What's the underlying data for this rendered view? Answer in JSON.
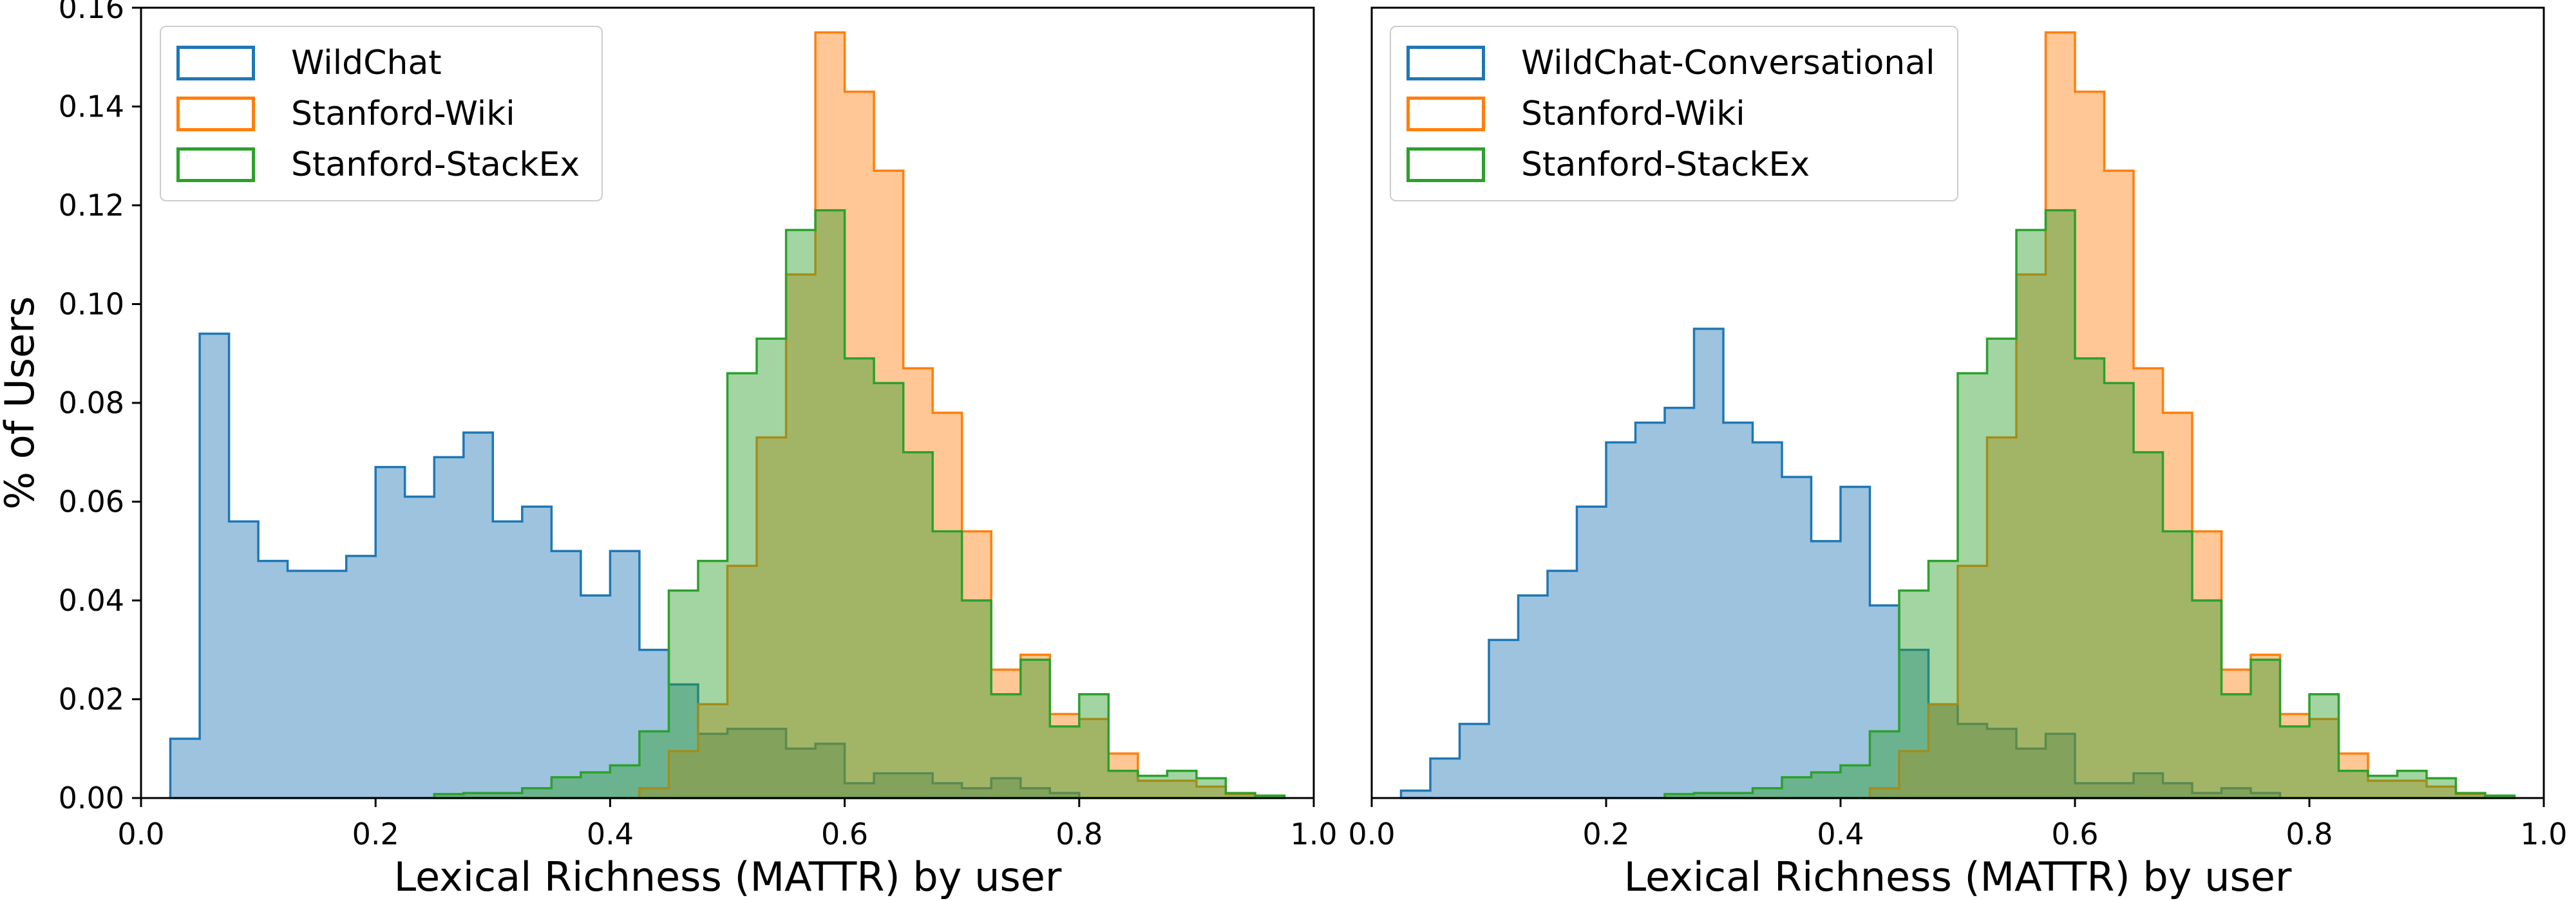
{
  "figure": {
    "background": "#ffffff"
  },
  "colors": {
    "wildchat": "#1f77b4",
    "stanford_wiki": "#ff7f0e",
    "stanford_stackex": "#2ca02c",
    "axis": "#000000",
    "legend_border": "#cccccc"
  },
  "axes": {
    "xlabel": "Lexical Richness (MATTR) by user",
    "ylabel": "% of Users",
    "x_tick_labels": [
      "0.0",
      "0.2",
      "0.4",
      "0.6",
      "0.8",
      "1.0"
    ],
    "y_tick_labels": [
      "0.00",
      "0.02",
      "0.04",
      "0.06",
      "0.08",
      "0.10",
      "0.12",
      "0.14",
      "0.16"
    ],
    "xlim": [
      0.0,
      1.0
    ],
    "ylim": [
      0.0,
      0.16
    ]
  },
  "chart_data": [
    {
      "type": "histogram-step",
      "panel": "left",
      "xlabel": "Lexical Richness (MATTR) by user",
      "ylabel": "% of Users",
      "xlim": [
        0.0,
        1.0
      ],
      "ylim": [
        0.0,
        0.16
      ],
      "grid": false,
      "legend_position": "upper left",
      "bin_start": 0.025,
      "bin_width": 0.025,
      "fill_alpha": 0.44,
      "series": [
        {
          "name": "WildChat",
          "color": "#1f77b4",
          "values": [
            0.012,
            0.094,
            0.056,
            0.048,
            0.046,
            0.046,
            0.049,
            0.067,
            0.061,
            0.069,
            0.074,
            0.056,
            0.059,
            0.05,
            0.041,
            0.05,
            0.03,
            0.023,
            0.013,
            0.014,
            0.014,
            0.01,
            0.011,
            0.003,
            0.005,
            0.005,
            0.003,
            0.002,
            0.004,
            0.002,
            0.001,
            0,
            0,
            0,
            0,
            0,
            0,
            0
          ]
        },
        {
          "name": "Stanford-Wiki",
          "color": "#ff7f0e",
          "values": [
            0,
            0,
            0,
            0,
            0,
            0,
            0,
            0,
            0,
            0,
            0,
            0,
            0,
            0,
            0,
            0,
            0.002,
            0.0095,
            0.019,
            0.047,
            0.073,
            0.106,
            0.155,
            0.143,
            0.127,
            0.087,
            0.078,
            0.054,
            0.026,
            0.029,
            0.017,
            0.016,
            0.009,
            0.0035,
            0.0035,
            0.0023,
            0.0008,
            0
          ]
        },
        {
          "name": "Stanford-StackEx",
          "color": "#2ca02c",
          "values": [
            0,
            0,
            0,
            0,
            0,
            0,
            0,
            0,
            0,
            0.0008,
            0.001,
            0.001,
            0.002,
            0.0042,
            0.0052,
            0.0066,
            0.0135,
            0.042,
            0.048,
            0.086,
            0.093,
            0.115,
            0.119,
            0.089,
            0.084,
            0.07,
            0.054,
            0.04,
            0.021,
            0.028,
            0.0145,
            0.021,
            0.0055,
            0.0045,
            0.0055,
            0.004,
            0.001,
            0.0005
          ]
        }
      ]
    },
    {
      "type": "histogram-step",
      "panel": "right",
      "xlabel": "Lexical Richness (MATTR) by user",
      "ylabel": "",
      "xlim": [
        0.0,
        1.0
      ],
      "ylim": [
        0.0,
        0.16
      ],
      "grid": false,
      "legend_position": "upper left",
      "bin_start": 0.025,
      "bin_width": 0.025,
      "fill_alpha": 0.44,
      "series": [
        {
          "name": "WildChat-Conversational",
          "color": "#1f77b4",
          "values": [
            0.0015,
            0.008,
            0.015,
            0.032,
            0.041,
            0.046,
            0.059,
            0.072,
            0.076,
            0.079,
            0.095,
            0.076,
            0.072,
            0.065,
            0.052,
            0.063,
            0.039,
            0.03,
            0.019,
            0.015,
            0.014,
            0.01,
            0.013,
            0.003,
            0.003,
            0.005,
            0.003,
            0.001,
            0.002,
            0.001,
            0,
            0,
            0,
            0,
            0,
            0,
            0,
            0
          ]
        },
        {
          "name": "Stanford-Wiki",
          "color": "#ff7f0e",
          "values": [
            0,
            0,
            0,
            0,
            0,
            0,
            0,
            0,
            0,
            0,
            0,
            0,
            0,
            0,
            0,
            0,
            0.002,
            0.0095,
            0.019,
            0.047,
            0.073,
            0.106,
            0.155,
            0.143,
            0.127,
            0.087,
            0.078,
            0.054,
            0.026,
            0.029,
            0.017,
            0.016,
            0.009,
            0.0035,
            0.0035,
            0.0023,
            0.0008,
            0
          ]
        },
        {
          "name": "Stanford-StackEx",
          "color": "#2ca02c",
          "values": [
            0,
            0,
            0,
            0,
            0,
            0,
            0,
            0,
            0,
            0.0008,
            0.001,
            0.001,
            0.002,
            0.0042,
            0.0052,
            0.0066,
            0.0135,
            0.042,
            0.048,
            0.086,
            0.093,
            0.115,
            0.119,
            0.089,
            0.084,
            0.07,
            0.054,
            0.04,
            0.021,
            0.028,
            0.0145,
            0.021,
            0.0055,
            0.0045,
            0.0055,
            0.004,
            0.001,
            0.0005
          ]
        }
      ]
    }
  ]
}
